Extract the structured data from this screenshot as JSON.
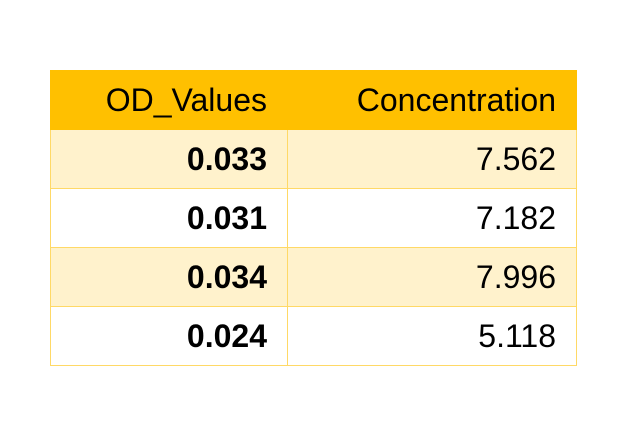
{
  "table": {
    "header": [
      "OD_Values",
      "Concentration"
    ],
    "rows": [
      [
        "0.033",
        "7.562"
      ],
      [
        "0.031",
        "7.182"
      ],
      [
        "0.034",
        "7.996"
      ],
      [
        "0.024",
        "5.118"
      ]
    ]
  }
}
